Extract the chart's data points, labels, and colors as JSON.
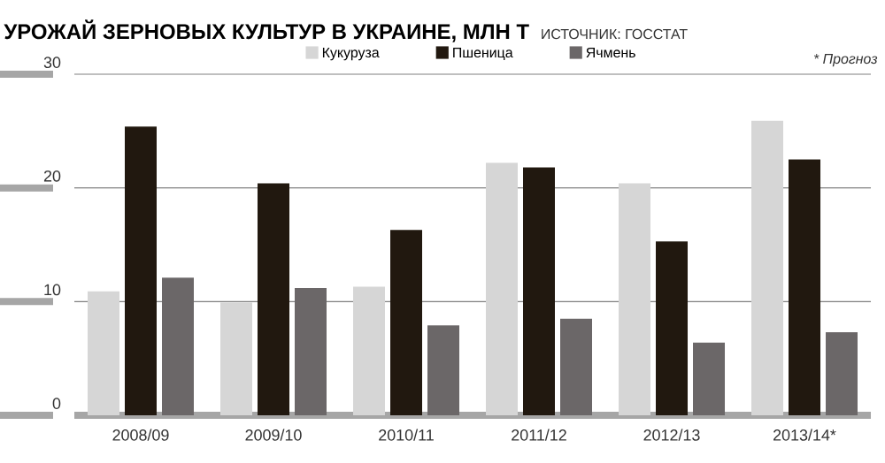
{
  "chart_data": {
    "type": "bar",
    "title": "УРОЖАЙ ЗЕРНОВЫХ КУЛЬТУР В УКРАИНЕ, МЛН Т",
    "annotations": [
      "ИСТОЧНИК: ГОССТАТ",
      "* Прогноз"
    ],
    "categories": [
      "2008/09",
      "2009/10",
      "2010/11",
      "2011/12",
      "2012/13",
      "2013/14*"
    ],
    "series": [
      {
        "name": "Кукуруза",
        "color": "#d6d6d6",
        "values": [
          10.9,
          9.9,
          11.3,
          22.2,
          20.4,
          25.9
        ]
      },
      {
        "name": "Пшеница",
        "color": "#21180f",
        "values": [
          25.4,
          20.4,
          16.3,
          21.8,
          15.3,
          22.5
        ]
      },
      {
        "name": "Ячмень",
        "color": "#6b6768",
        "values": [
          12.1,
          11.2,
          7.9,
          8.5,
          6.4,
          7.3
        ]
      }
    ],
    "ylim": [
      0,
      30
    ],
    "yticks": [
      0,
      10,
      20,
      30
    ],
    "grid": "y",
    "legend": "top"
  }
}
